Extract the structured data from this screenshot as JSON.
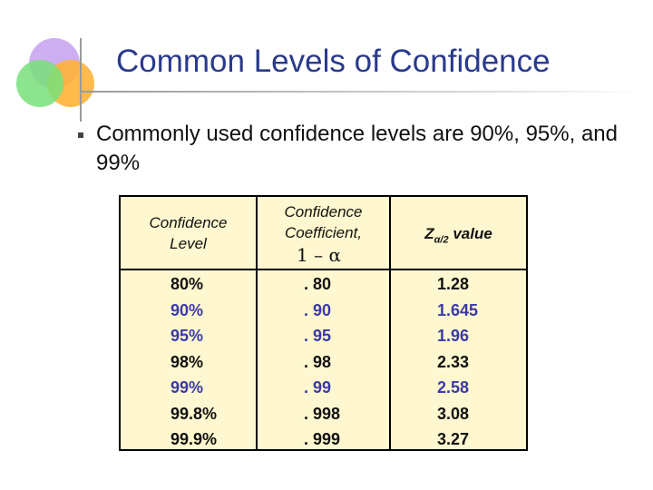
{
  "title": "Common Levels of Confidence",
  "bullet": "Commonly used confidence levels are 90%, 95%, and 99%",
  "table": {
    "headers": {
      "level_line1": "Confidence",
      "level_line2": "Level",
      "coef_line1": "Confidence",
      "coef_line2": "Coefficient,",
      "coef_formula": "1 – α",
      "z_symbol": "Z",
      "z_sub": "α/2",
      "z_value": "value"
    },
    "rows": [
      {
        "level": "80%",
        "coef": ". 80",
        "z": "1.28"
      },
      {
        "level": "90%",
        "coef": ". 90",
        "z": "1.645"
      },
      {
        "level": "95%",
        "coef": ". 95",
        "z": "1.96"
      },
      {
        "level": "98%",
        "coef": ". 98",
        "z": "2.33"
      },
      {
        "level": "99%",
        "coef": ". 99",
        "z": "2.58"
      },
      {
        "level": "99.8%",
        "coef": ". 998",
        "z": "3.08"
      },
      {
        "level": "99.9%",
        "coef": ". 999",
        "z": "3.27"
      }
    ]
  },
  "colors": {
    "title": "#2a3a8c",
    "highlight": "#3a3aa8",
    "table_bg": "#fef7cf"
  }
}
